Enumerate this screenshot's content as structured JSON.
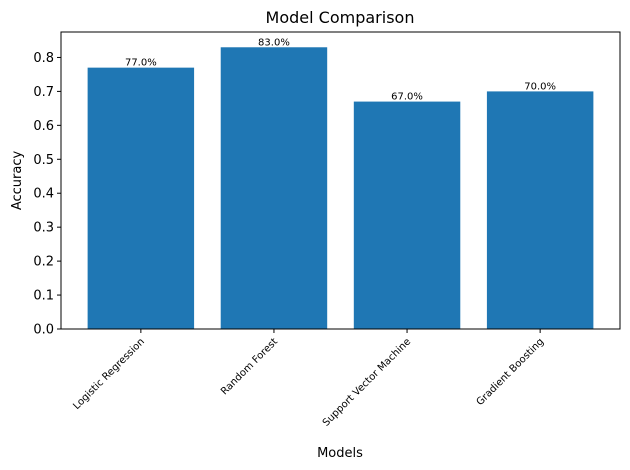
{
  "chart_data": {
    "type": "bar",
    "title": "Model Comparison",
    "xlabel": "Models",
    "ylabel": "Accuracy",
    "categories": [
      "Logistic Regression",
      "Random Forest",
      "Support Vector Machine",
      "Gradient Boosting"
    ],
    "values": [
      0.77,
      0.83,
      0.67,
      0.7
    ],
    "data_labels": [
      "77.0%",
      "83.0%",
      "67.0%",
      "70.0%"
    ],
    "ylim": [
      0,
      0.875
    ],
    "yticks": [
      0.0,
      0.1,
      0.2,
      0.3,
      0.4,
      0.5,
      0.6,
      0.7,
      0.8
    ],
    "ytick_labels": [
      "0.0",
      "0.1",
      "0.2",
      "0.3",
      "0.4",
      "0.5",
      "0.6",
      "0.7",
      "0.8"
    ],
    "bar_color": "#1f77b4",
    "grid": false,
    "legend": "none"
  }
}
